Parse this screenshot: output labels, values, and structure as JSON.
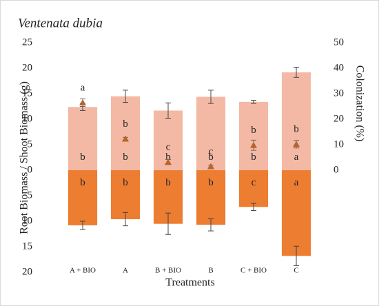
{
  "chart_data": {
    "type": "bar",
    "title": "Ventenata dubia",
    "y_label": "Root Biomass / Shoot Biomass (g)",
    "y2_label": "Colonization (%)",
    "x_label": "Treatments",
    "categories": [
      "A + BIO",
      "A",
      "B + BIO",
      "B",
      "C + BIO",
      "C"
    ],
    "shoot": {
      "color": "#f4b9a5",
      "values": [
        12.4,
        14.5,
        11.7,
        14.4,
        13.4,
        19.2
      ],
      "errors": [
        0.7,
        1.2,
        1.5,
        1.3,
        0.3,
        1.0
      ],
      "letters": [
        "b",
        "b",
        "b",
        "b",
        "b",
        "a"
      ]
    },
    "root": {
      "color": "#ed7d31",
      "values": [
        -10.8,
        -9.6,
        -10.5,
        -10.7,
        -7.2,
        -16.8
      ],
      "errors": [
        0.8,
        1.3,
        2.1,
        1.2,
        0.7,
        1.9
      ],
      "letters": [
        "b",
        "b",
        "b",
        "b",
        "c",
        "a"
      ]
    },
    "colonization": {
      "color": "#b8642a",
      "axis": "y2",
      "values": [
        26.5,
        12.3,
        3.2,
        1.5,
        9.8,
        10.2
      ],
      "errors": [
        1.5,
        0.6,
        1.0,
        0.5,
        2.0,
        1.5
      ],
      "letters": [
        "a",
        "b",
        "c",
        "c",
        "b",
        "b"
      ]
    },
    "ylim": [
      -20,
      25
    ],
    "yticks": [
      25,
      20,
      15,
      10,
      5,
      0,
      {
        "value": -5,
        "label": "5"
      },
      {
        "value": -10,
        "label": "10"
      },
      {
        "value": -15,
        "label": "15"
      },
      {
        "value": -20,
        "label": "20"
      }
    ],
    "y2lim": [
      -40,
      50
    ],
    "y2ticks": [
      0,
      10,
      20,
      30,
      40,
      50
    ]
  }
}
